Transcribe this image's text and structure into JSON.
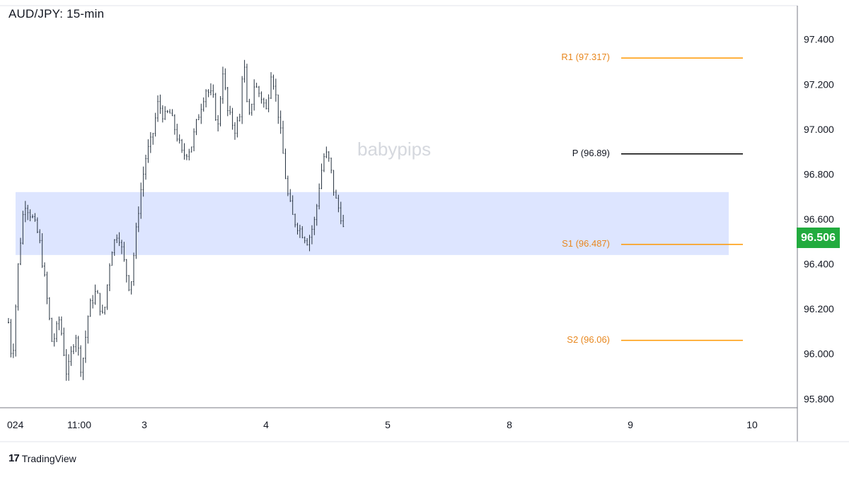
{
  "title": "AUD/JPY: 15-min",
  "watermark": "babypips",
  "brand": {
    "name": "TradingView",
    "logo": "17"
  },
  "current_price": {
    "label": "96.506",
    "color": "#22ab3e"
  },
  "colors": {
    "up": "#26323f",
    "support_zone": "#dde5ff",
    "pivot": "#000000",
    "support_resistance": "#ff9800"
  },
  "chart_data": {
    "type": "candlestick",
    "title": "AUD/JPY: 15-min",
    "xlabel": "",
    "ylabel": "",
    "ylim": [
      95.76,
      97.55
    ],
    "y_ticks": [
      "97.400",
      "97.200",
      "97.000",
      "96.800",
      "96.600",
      "96.400",
      "96.200",
      "96.000",
      "95.800"
    ],
    "x_ticks": [
      "024",
      "11:00",
      "3",
      "4",
      "5",
      "8",
      "9",
      "10"
    ],
    "support_zone": {
      "from": 96.44,
      "to": 96.72
    },
    "pivot_levels": [
      {
        "label": "R1 (97.317)",
        "value": 97.317,
        "kind": "resistance"
      },
      {
        "label": "P (96.89)",
        "value": 96.89,
        "kind": "pivot"
      },
      {
        "label": "S1 (96.487)",
        "value": 96.487,
        "kind": "support"
      },
      {
        "label": "S2 (96.06)",
        "value": 96.06,
        "kind": "support"
      }
    ],
    "close_path": [
      [
        0,
        96.14
      ],
      [
        0.03,
        95.95
      ],
      [
        0.08,
        96.4
      ],
      [
        0.13,
        96.68
      ],
      [
        0.2,
        96.6
      ],
      [
        0.25,
        96.52
      ],
      [
        0.3,
        96.32
      ],
      [
        0.36,
        96.04
      ],
      [
        0.42,
        96.16
      ],
      [
        0.48,
        95.9
      ],
      [
        0.55,
        96.1
      ],
      [
        0.6,
        95.92
      ],
      [
        0.66,
        96.2
      ],
      [
        0.72,
        96.28
      ],
      [
        0.78,
        96.15
      ],
      [
        0.84,
        96.45
      ],
      [
        0.9,
        96.55
      ],
      [
        0.96,
        96.38
      ],
      [
        1.0,
        96.28
      ],
      [
        1.04,
        96.5
      ],
      [
        1.08,
        96.7
      ],
      [
        1.13,
        96.88
      ],
      [
        1.18,
        96.96
      ],
      [
        1.23,
        97.12
      ],
      [
        1.28,
        97.05
      ],
      [
        1.32,
        97.08
      ],
      [
        1.38,
        96.98
      ],
      [
        1.43,
        96.88
      ],
      [
        1.5,
        96.92
      ],
      [
        1.56,
        97.06
      ],
      [
        1.62,
        97.18
      ],
      [
        1.68,
        97.14
      ],
      [
        1.72,
        97.0
      ],
      [
        1.76,
        97.27
      ],
      [
        1.8,
        97.08
      ],
      [
        1.86,
        97.0
      ],
      [
        1.9,
        97.05
      ],
      [
        1.93,
        97.34
      ],
      [
        1.97,
        97.02
      ],
      [
        2.02,
        97.2
      ],
      [
        2.08,
        97.14
      ],
      [
        2.12,
        97.08
      ],
      [
        2.16,
        97.27
      ],
      [
        2.21,
        97.1
      ],
      [
        2.25,
        96.92
      ],
      [
        2.29,
        96.72
      ],
      [
        2.34,
        96.6
      ],
      [
        2.4,
        96.55
      ],
      [
        2.46,
        96.5
      ],
      [
        2.52,
        96.6
      ],
      [
        2.56,
        96.78
      ],
      [
        2.6,
        96.9
      ],
      [
        2.64,
        96.85
      ],
      [
        2.68,
        96.7
      ],
      [
        2.73,
        96.62
      ],
      [
        2.77,
        96.5
      ]
    ]
  }
}
